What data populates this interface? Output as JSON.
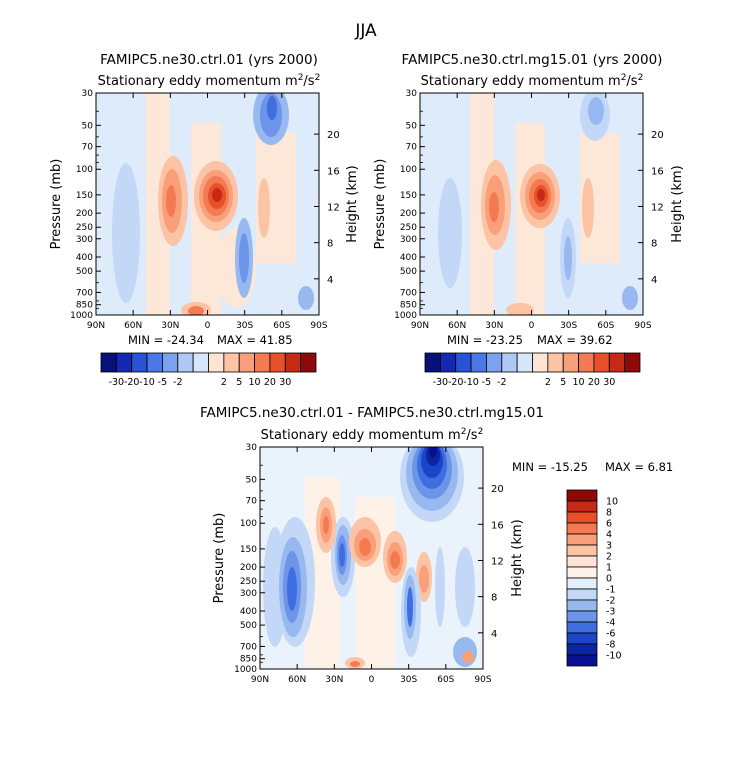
{
  "figure": {
    "season_title": "JJA",
    "pressure_label": "Pressure (mb)",
    "height_label": "Height (km)",
    "pressure_ticks": [
      30,
      50,
      70,
      100,
      150,
      200,
      250,
      300,
      400,
      500,
      700,
      850,
      1000
    ],
    "height_ticks": [
      4,
      8,
      12,
      16,
      20
    ],
    "lat_ticks": [
      "90N",
      "60N",
      "30N",
      "0",
      "30S",
      "60S",
      "90S"
    ]
  },
  "panels": [
    {
      "title": "FAMIPC5.ne30.ctrl.01 (yrs 2000)",
      "subtitle": "Stationary eddy momentum",
      "units_base": "m",
      "units_sup1": "2",
      "units_mid": "/s",
      "units_sup2": "2",
      "min_label": "MIN = -24.34",
      "max_label": "MAX =  41.85"
    },
    {
      "title": "FAMIPC5.ne30.ctrl.mg15.01 (yrs 2000)",
      "subtitle": "Stationary eddy momentum",
      "units_base": "m",
      "units_sup1": "2",
      "units_mid": "/s",
      "units_sup2": "2",
      "min_label": "MIN = -23.25",
      "max_label": "MAX =  39.62"
    },
    {
      "title": "FAMIPC5.ne30.ctrl.01 - FAMIPC5.ne30.ctrl.mg15.01",
      "subtitle": "Stationary eddy momentum",
      "units_base": "m",
      "units_sup1": "2",
      "units_mid": "/s",
      "units_sup2": "2",
      "min_label": "MIN = -15.25",
      "max_label": "MAX =   6.81"
    }
  ],
  "colorbars": {
    "horizontal": {
      "labels": [
        "-30",
        "-20",
        "-10",
        "-5",
        "-2",
        "2",
        "5",
        "10",
        "20",
        "30"
      ],
      "colors": [
        "#08107a",
        "#1428b4",
        "#2a52d6",
        "#4a78e6",
        "#7aa2ee",
        "#afc8f5",
        "#d7e6fa",
        "#fde4d4",
        "#fcc3a4",
        "#f9a07a",
        "#f47a52",
        "#e8502c",
        "#c52a16",
        "#8e0a0a"
      ]
    },
    "vertical": {
      "labels": [
        "10",
        "8",
        "6",
        "4",
        "3",
        "2",
        "1",
        "0",
        "-1",
        "-2",
        "-3",
        "-4",
        "-6",
        "-8",
        "-10"
      ],
      "colors": [
        "#8e0a0a",
        "#c52a16",
        "#e8502c",
        "#f47a52",
        "#f9a07a",
        "#fcc3a4",
        "#fde4d4",
        "#fdf3ea",
        "#e3eefb",
        "#c3d8f7",
        "#98b8f0",
        "#6c94e8",
        "#3f6ee0",
        "#1c44c8",
        "#0c24a0",
        "#081090"
      ]
    }
  },
  "chart_data": [
    {
      "type": "heatmap",
      "title": "FAMIPC5.ne30.ctrl.01 (yrs 2000)",
      "subtitle": "Stationary eddy momentum m^2/s^2",
      "x": "latitude 90N to 90S",
      "y": "pressure 1000 to 30 mb (log)",
      "min": -24.34,
      "max": 41.85,
      "features": [
        {
          "lat": -5,
          "p": 150,
          "value": 40
        },
        {
          "lat": 25,
          "p": 180,
          "value": 22
        },
        {
          "lat": 12,
          "p": 950,
          "value": 14
        },
        {
          "lat": -56,
          "p": 180,
          "value": 8
        },
        {
          "lat": -37,
          "p": 36,
          "value": -14
        },
        {
          "lat": -30,
          "p": 400,
          "value": -10
        },
        {
          "lat": 68,
          "p": 250,
          "value": -3
        },
        {
          "lat": -74,
          "p": 200,
          "value": -3
        },
        {
          "lat": -80,
          "p": 900,
          "value": -6
        }
      ]
    },
    {
      "type": "heatmap",
      "title": "FAMIPC5.ne30.ctrl.mg15.01 (yrs 2000)",
      "subtitle": "Stationary eddy momentum m^2/s^2",
      "x": "latitude 90N to 90S",
      "y": "pressure 1000 to 30 mb (log)",
      "min": -23.25,
      "max": 39.62,
      "features": [
        {
          "lat": -5,
          "p": 150,
          "value": 38
        },
        {
          "lat": 25,
          "p": 190,
          "value": 18
        },
        {
          "lat": 12,
          "p": 950,
          "value": 10
        },
        {
          "lat": -56,
          "p": 180,
          "value": 6
        },
        {
          "lat": -35,
          "p": 38,
          "value": -10
        },
        {
          "lat": -28,
          "p": 400,
          "value": -6
        },
        {
          "lat": 68,
          "p": 250,
          "value": -2
        },
        {
          "lat": -80,
          "p": 900,
          "value": -5
        }
      ]
    },
    {
      "type": "heatmap",
      "title": "FAMIPC5.ne30.ctrl.01 - FAMIPC5.ne30.ctrl.mg15.01",
      "subtitle": "Stationary eddy momentum m^2/s^2",
      "x": "latitude 90N to 90S",
      "y": "pressure 1000 to 30 mb (log)",
      "min": -15.25,
      "max": 6.81,
      "features": [
        {
          "lat": -42,
          "p": 32,
          "value": -14
        },
        {
          "lat": 52,
          "p": 280,
          "value": -6
        },
        {
          "lat": 22,
          "p": 150,
          "value": -6
        },
        {
          "lat": 3,
          "p": 160,
          "value": 6
        },
        {
          "lat": -18,
          "p": 190,
          "value": 5
        },
        {
          "lat": 33,
          "p": 110,
          "value": 4
        },
        {
          "lat": -27,
          "p": 250,
          "value": 4
        },
        {
          "lat": -35,
          "p": 400,
          "value": -6
        },
        {
          "lat": 75,
          "p": 200,
          "value": -3
        },
        {
          "lat": 15,
          "p": 970,
          "value": 3
        }
      ]
    }
  ]
}
